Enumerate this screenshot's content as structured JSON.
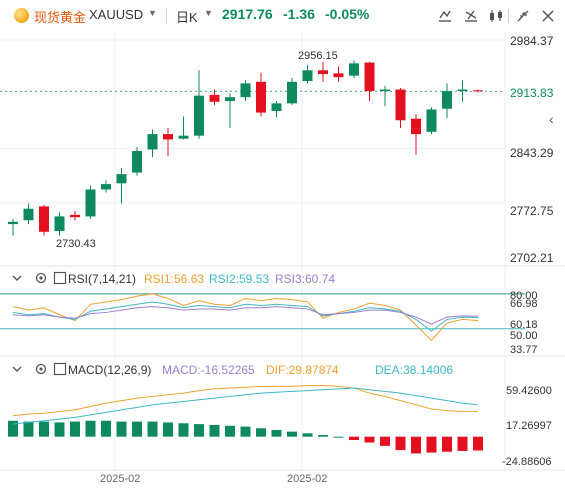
{
  "header": {
    "symbol_name": "现货黄金",
    "symbol_code": "XAUUSD",
    "period": "日K",
    "last_price": "2917.76",
    "change": "-1.36",
    "change_pct": "-0.05%"
  },
  "colors": {
    "up": "#0f8a5f",
    "down": "#e5101f",
    "accent": "#e8590c",
    "axis": "#333333"
  },
  "icons": [
    "chart-type-icon",
    "indicator-icon",
    "compare-icon",
    "fullscreen-icon",
    "close-icon",
    "collapse-panel-icon"
  ],
  "price_axis": [
    "2984.37",
    "2913.83",
    "2843.29",
    "2772.75",
    "2702.21"
  ],
  "annotations": {
    "high": "2956.15",
    "low": "2730.43"
  },
  "rsi": {
    "title": "RSI(7,14,21)",
    "rsi1": "RSI1:56.63",
    "rsi2": "RSI2:59.53",
    "rsi3": "RSI3:60.74",
    "axis": [
      "80.00",
      "66.98",
      "60.18",
      "50.00",
      "33.77"
    ]
  },
  "macd": {
    "title": "MACD(12,26,9)",
    "macd": "MACD:-16.52265",
    "dif": "DIF:29.87874",
    "dea": "DEA:38.14006",
    "axis": [
      "59.42600",
      "17.26997",
      "-24.88606"
    ]
  },
  "dates": [
    "2025-02",
    "2025-02"
  ],
  "chart_data": [
    {
      "type": "candlestick",
      "title": "XAUUSD 日K",
      "ylim": [
        2702.21,
        2984.37
      ],
      "candles": [
        {
          "o": 2745,
          "h": 2752,
          "l": 2730,
          "c": 2748
        },
        {
          "o": 2750,
          "h": 2772,
          "l": 2745,
          "c": 2765
        },
        {
          "o": 2768,
          "h": 2770,
          "l": 2730,
          "c": 2735
        },
        {
          "o": 2736,
          "h": 2760,
          "l": 2730,
          "c": 2755
        },
        {
          "o": 2757,
          "h": 2762,
          "l": 2750,
          "c": 2754
        },
        {
          "o": 2755,
          "h": 2795,
          "l": 2752,
          "c": 2790
        },
        {
          "o": 2790,
          "h": 2802,
          "l": 2786,
          "c": 2797
        },
        {
          "o": 2798,
          "h": 2818,
          "l": 2772,
          "c": 2810
        },
        {
          "o": 2812,
          "h": 2845,
          "l": 2808,
          "c": 2840
        },
        {
          "o": 2842,
          "h": 2868,
          "l": 2832,
          "c": 2862
        },
        {
          "o": 2862,
          "h": 2870,
          "l": 2833,
          "c": 2855
        },
        {
          "o": 2856,
          "h": 2885,
          "l": 2855,
          "c": 2860
        },
        {
          "o": 2860,
          "h": 2945,
          "l": 2856,
          "c": 2912
        },
        {
          "o": 2913,
          "h": 2920,
          "l": 2900,
          "c": 2904
        },
        {
          "o": 2905,
          "h": 2915,
          "l": 2870,
          "c": 2910
        },
        {
          "o": 2910,
          "h": 2932,
          "l": 2905,
          "c": 2928
        },
        {
          "o": 2930,
          "h": 2942,
          "l": 2885,
          "c": 2890
        },
        {
          "o": 2892,
          "h": 2905,
          "l": 2884,
          "c": 2902
        },
        {
          "o": 2902,
          "h": 2935,
          "l": 2900,
          "c": 2930
        },
        {
          "o": 2931,
          "h": 2952,
          "l": 2928,
          "c": 2945
        },
        {
          "o": 2945,
          "h": 2956,
          "l": 2930,
          "c": 2940
        },
        {
          "o": 2941,
          "h": 2950,
          "l": 2930,
          "c": 2936
        },
        {
          "o": 2938,
          "h": 2958,
          "l": 2935,
          "c": 2954
        },
        {
          "o": 2955,
          "h": 2956,
          "l": 2905,
          "c": 2918
        },
        {
          "o": 2918,
          "h": 2925,
          "l": 2898,
          "c": 2920
        },
        {
          "o": 2920,
          "h": 2922,
          "l": 2870,
          "c": 2880
        },
        {
          "o": 2882,
          "h": 2888,
          "l": 2835,
          "c": 2862
        },
        {
          "o": 2865,
          "h": 2897,
          "l": 2862,
          "c": 2894
        },
        {
          "o": 2895,
          "h": 2928,
          "l": 2883,
          "c": 2918
        },
        {
          "o": 2918,
          "h": 2932,
          "l": 2904,
          "c": 2920
        },
        {
          "o": 2919,
          "h": 2920,
          "l": 2916,
          "c": 2917.76
        }
      ]
    },
    {
      "type": "line",
      "title": "RSI(7,14,21)",
      "ylim": [
        30,
        85
      ],
      "reference_lines": [
        80,
        50
      ],
      "series": [
        {
          "name": "RSI1",
          "color": "#f0a030",
          "values": [
            69,
            66,
            68,
            62,
            57,
            71,
            73,
            75,
            78,
            80,
            76,
            70,
            74,
            71,
            70,
            76,
            74,
            76,
            75,
            73,
            59,
            64,
            67,
            72,
            70,
            66,
            53,
            40,
            55,
            58,
            57
          ]
        },
        {
          "name": "RSI2",
          "color": "#3fb7c7",
          "values": [
            64,
            62,
            63,
            60,
            58,
            65,
            67,
            69,
            71,
            73,
            71,
            68,
            70,
            69,
            68,
            71,
            70,
            71,
            70,
            69,
            61,
            63,
            65,
            68,
            67,
            65,
            58,
            48,
            58,
            60,
            59.5
          ]
        },
        {
          "name": "RSI3",
          "color": "#9b7fd1",
          "values": [
            62,
            61,
            62,
            60,
            59,
            63,
            64,
            66,
            68,
            69,
            68,
            66,
            67,
            67,
            66,
            68,
            68,
            69,
            68,
            67,
            62,
            63,
            64,
            66,
            66,
            64,
            60,
            54,
            60,
            61,
            60.7
          ]
        }
      ]
    },
    {
      "type": "bar+line",
      "title": "MACD(12,26,9)",
      "ylim": [
        -35,
        70
      ],
      "series": [
        {
          "name": "MACD",
          "kind": "bar",
          "values": [
            19,
            18,
            18,
            17,
            18,
            19,
            19,
            18,
            18,
            18,
            17,
            16,
            15,
            14,
            13,
            12,
            10,
            8,
            6,
            4,
            2,
            0,
            -4,
            -7,
            -11,
            -16,
            -20,
            -19,
            -18,
            -17,
            -16.5
          ]
        },
        {
          "name": "DIF",
          "color": "#f0a030",
          "values": [
            25,
            27,
            28,
            30,
            32,
            36,
            40,
            43,
            46,
            48,
            50,
            52,
            55,
            57,
            58,
            59,
            60,
            60,
            60,
            61,
            61,
            60,
            58,
            52,
            48,
            43,
            38,
            33,
            31,
            30,
            29.88
          ]
        },
        {
          "name": "DEA",
          "color": "#3fb7c7",
          "values": [
            15,
            17,
            19,
            21,
            23,
            26,
            29,
            32,
            35,
            38,
            40,
            42,
            44,
            46,
            48,
            50,
            52,
            53,
            54,
            55,
            56,
            57,
            58,
            56,
            54,
            52,
            49,
            46,
            43,
            40,
            38.14
          ]
        }
      ]
    }
  ]
}
